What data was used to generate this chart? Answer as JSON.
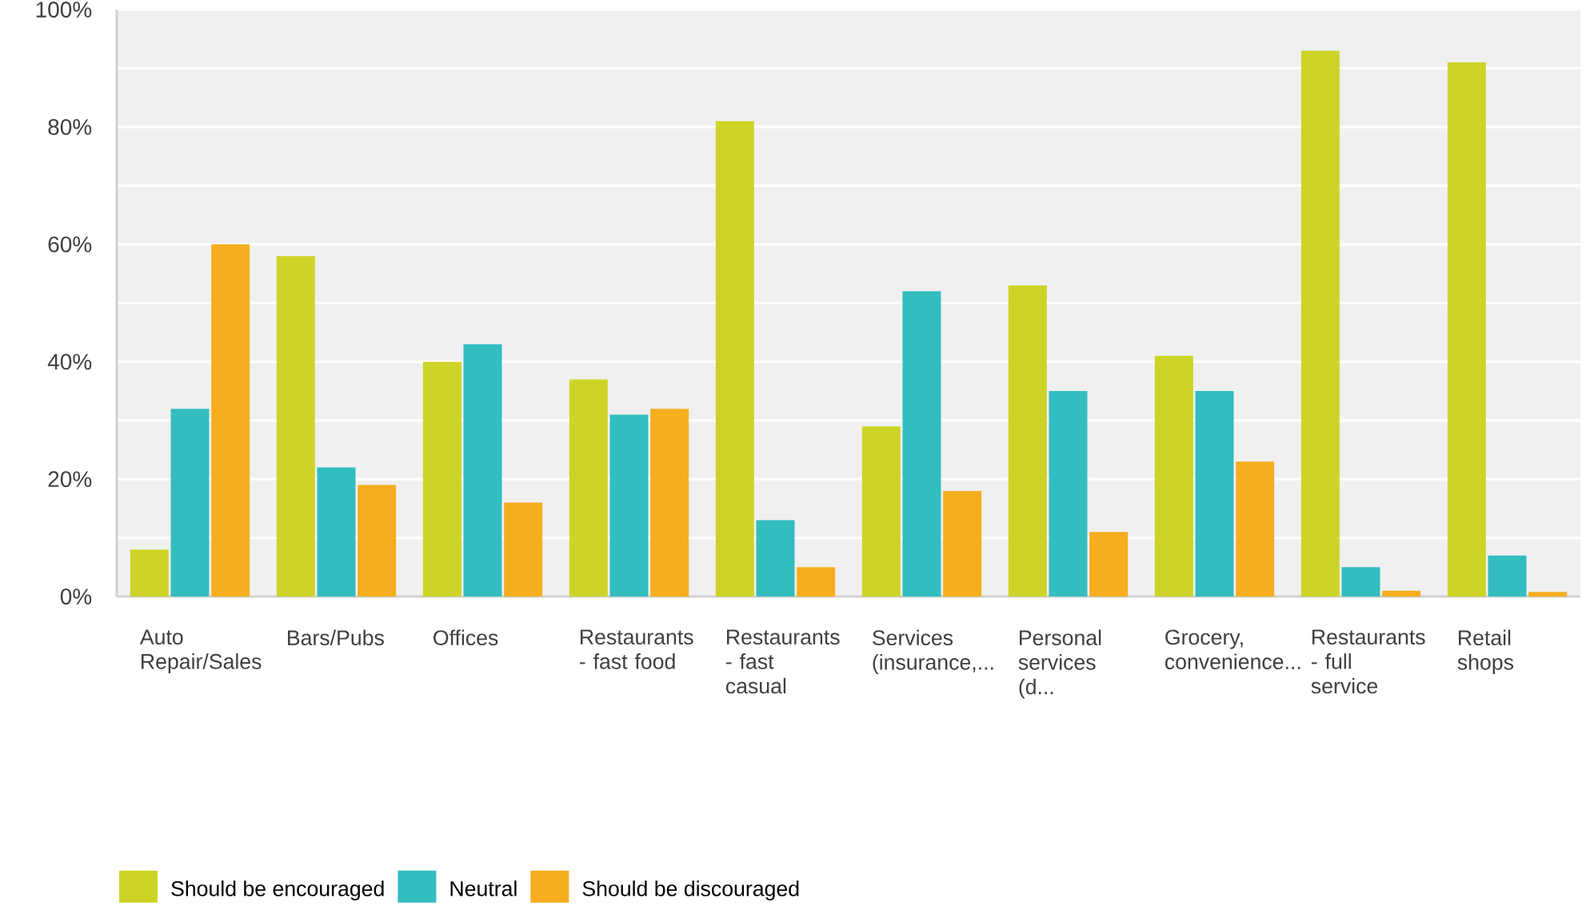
{
  "chart_data": {
    "type": "bar",
    "categories": [
      "Auto Repair/Sales",
      "Bars/Pubs",
      "Offices",
      "Restaurants - fast food",
      "Restaurants - fast casual",
      "Services (insurance,...",
      "Personal services (d...",
      "Grocery, convenience...",
      "Restaurants - full service",
      "Retail shops"
    ],
    "series": [
      {
        "name": "Should be encouraged",
        "color": "#cdd427",
        "values": [
          8,
          58,
          40,
          37,
          81,
          29,
          53,
          41,
          93,
          91
        ]
      },
      {
        "name": "Neutral",
        "color": "#33bdbf",
        "values": [
          32,
          22,
          43,
          31,
          13,
          52,
          35,
          35,
          5,
          7
        ]
      },
      {
        "name": "Should be discouraged",
        "color": "#f6ae1f",
        "values": [
          60,
          19,
          16,
          32,
          5,
          18,
          11,
          23,
          1,
          0.8
        ]
      }
    ],
    "ylim": [
      0,
      100
    ],
    "yticks": [
      {
        "value": 0,
        "label": "0%"
      },
      {
        "value": 10,
        "label": null
      },
      {
        "value": 20,
        "label": "20%"
      },
      {
        "value": 30,
        "label": null
      },
      {
        "value": 40,
        "label": "40%"
      },
      {
        "value": 50,
        "label": null
      },
      {
        "value": 60,
        "label": "60%"
      },
      {
        "value": 70,
        "label": null
      },
      {
        "value": 80,
        "label": "80%"
      },
      {
        "value": 90,
        "label": null
      },
      {
        "value": 100,
        "label": "100%"
      }
    ],
    "grid": "y",
    "legend": "bottom"
  }
}
